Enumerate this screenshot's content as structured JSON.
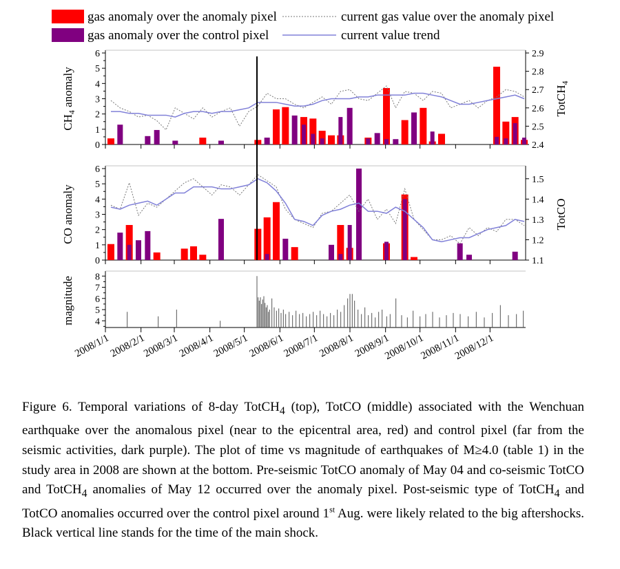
{
  "legend": {
    "items": [
      {
        "label": "gas anomaly over the anomaly pixel",
        "kind": "bar",
        "color": "#ff0000"
      },
      {
        "label": "gas anomaly over the control pixel",
        "kind": "bar",
        "color": "#800080"
      },
      {
        "label": "current gas value over the anomaly pixel",
        "kind": "dotted",
        "color": "#777777"
      },
      {
        "label": "current value trend",
        "kind": "line",
        "color": "#8080d8"
      }
    ]
  },
  "colors": {
    "anomaly": "#ff0000",
    "control": "#800080",
    "current": "#777777",
    "trend": "#8080d8",
    "mainshock": "#000000"
  },
  "x_ticks": [
    "2008/1/1",
    "2008/2/1",
    "2008/3/1",
    "2008/4/1",
    "2008/5/1",
    "2008/6/1",
    "2008/7/1",
    "2008/8/1",
    "2008/9/1",
    "2008/10/1",
    "2008/11/1",
    "2008/12/1"
  ],
  "main_shock": "2008-05-12",
  "chart_data": [
    {
      "type": "bar",
      "panel": "ch4",
      "ylabel": "CH4 anomaly",
      "y2label": "TotCH4",
      "ylim": [
        0,
        6
      ],
      "y_ticks": [
        0,
        1,
        2,
        3,
        4,
        5,
        6
      ],
      "y2lim": [
        2.4,
        2.9
      ],
      "y2_ticks": [
        2.4,
        2.5,
        2.6,
        2.7,
        2.8,
        2.9
      ],
      "x": [
        "2008-01-01",
        "2008-01-09",
        "2008-01-17",
        "2008-01-25",
        "2008-02-02",
        "2008-02-10",
        "2008-02-18",
        "2008-02-26",
        "2008-03-05",
        "2008-03-13",
        "2008-03-21",
        "2008-03-29",
        "2008-04-06",
        "2008-04-14",
        "2008-04-22",
        "2008-04-30",
        "2008-05-08",
        "2008-05-16",
        "2008-05-24",
        "2008-06-01",
        "2008-06-09",
        "2008-06-17",
        "2008-06-25",
        "2008-07-03",
        "2008-07-11",
        "2008-07-19",
        "2008-07-27",
        "2008-08-04",
        "2008-08-12",
        "2008-08-20",
        "2008-08-28",
        "2008-09-05",
        "2008-09-13",
        "2008-09-21",
        "2008-09-29",
        "2008-10-07",
        "2008-10-15",
        "2008-10-23",
        "2008-10-31",
        "2008-11-08",
        "2008-11-16",
        "2008-11-24",
        "2008-12-02",
        "2008-12-10",
        "2008-12-18",
        "2008-12-26"
      ],
      "series": [
        {
          "name": "gas anomaly over the anomaly pixel",
          "values": [
            0.4,
            0,
            0,
            0,
            0,
            0,
            0,
            0,
            0,
            0,
            0.45,
            0,
            0,
            0,
            0,
            0,
            0.3,
            0,
            2.3,
            2.45,
            0,
            1.8,
            1.7,
            0.9,
            0.6,
            0.6,
            0,
            0,
            0.45,
            0,
            3.7,
            0,
            1.6,
            0,
            2.4,
            0.2,
            0.7,
            0,
            0,
            0,
            0,
            0,
            5.1,
            1.5,
            1.8,
            0.3
          ]
        },
        {
          "name": "gas anomaly over the control pixel",
          "values": [
            0,
            1.3,
            0,
            0,
            0.55,
            0.95,
            0,
            0.25,
            0,
            0,
            0,
            0,
            0.25,
            0,
            0,
            0,
            0,
            0.45,
            0,
            0,
            1.9,
            1.3,
            0.7,
            0.4,
            0,
            1.8,
            2.4,
            0,
            0.4,
            0.75,
            0.35,
            0.35,
            0,
            2.1,
            0,
            0.85,
            0,
            0,
            0,
            0,
            0,
            0,
            0.5,
            0.4,
            1.4,
            0.45
          ]
        },
        {
          "name": "current gas value over the anomaly pixel",
          "values": [
            2.64,
            2.6,
            2.58,
            2.55,
            2.56,
            2.53,
            2.48,
            2.6,
            2.57,
            2.54,
            2.6,
            2.55,
            2.58,
            2.6,
            2.5,
            2.58,
            2.61,
            2.68,
            2.65,
            2.65,
            2.62,
            2.6,
            2.63,
            2.66,
            2.62,
            2.69,
            2.7,
            2.65,
            2.64,
            2.68,
            2.72,
            2.6,
            2.69,
            2.68,
            2.64,
            2.69,
            2.68,
            2.6,
            2.62,
            2.64,
            2.6,
            2.64,
            2.66,
            2.7,
            2.69,
            2.66
          ]
        },
        {
          "name": "current value trend",
          "values": [
            2.58,
            2.58,
            2.57,
            2.57,
            2.56,
            2.56,
            2.56,
            2.55,
            2.57,
            2.58,
            2.58,
            2.57,
            2.58,
            2.58,
            2.59,
            2.6,
            2.63,
            2.63,
            2.63,
            2.62,
            2.61,
            2.61,
            2.62,
            2.64,
            2.65,
            2.65,
            2.65,
            2.66,
            2.66,
            2.67,
            2.67,
            2.67,
            2.67,
            2.68,
            2.68,
            2.67,
            2.66,
            2.64,
            2.62,
            2.62,
            2.63,
            2.64,
            2.65,
            2.66,
            2.67,
            2.65
          ]
        }
      ]
    },
    {
      "type": "bar",
      "panel": "co",
      "ylabel": "CO anomaly",
      "y2label": "TotCO",
      "ylim": [
        0,
        6
      ],
      "y_ticks": [
        0,
        1,
        2,
        3,
        4,
        5,
        6
      ],
      "y2lim": [
        1.1,
        1.55
      ],
      "y2_ticks": [
        1.1,
        1.2,
        1.3,
        1.4,
        1.5
      ],
      "x": [
        "2008-01-01",
        "2008-01-09",
        "2008-01-17",
        "2008-01-25",
        "2008-02-02",
        "2008-02-10",
        "2008-02-18",
        "2008-02-26",
        "2008-03-05",
        "2008-03-13",
        "2008-03-21",
        "2008-03-29",
        "2008-04-06",
        "2008-04-14",
        "2008-04-22",
        "2008-04-30",
        "2008-05-08",
        "2008-05-16",
        "2008-05-24",
        "2008-06-01",
        "2008-06-09",
        "2008-06-17",
        "2008-06-25",
        "2008-07-03",
        "2008-07-11",
        "2008-07-19",
        "2008-07-27",
        "2008-08-04",
        "2008-08-12",
        "2008-08-20",
        "2008-08-28",
        "2008-09-05",
        "2008-09-13",
        "2008-09-21",
        "2008-09-29",
        "2008-10-07",
        "2008-10-15",
        "2008-10-23",
        "2008-10-31",
        "2008-11-08",
        "2008-11-16",
        "2008-11-24",
        "2008-12-02",
        "2008-12-10",
        "2008-12-18",
        "2008-12-26"
      ],
      "series": [
        {
          "name": "gas anomaly over the anomaly pixel",
          "values": [
            1.05,
            0,
            2.3,
            0,
            0,
            0.5,
            0,
            0,
            0.75,
            0.9,
            0.35,
            0,
            0,
            0,
            0,
            0,
            2.05,
            2.8,
            3.8,
            0,
            0.85,
            0,
            0,
            0,
            0,
            2.3,
            0.8,
            0,
            0,
            0,
            1.1,
            0,
            4.3,
            0.2,
            0,
            0,
            0,
            0,
            0,
            0,
            0,
            0,
            0,
            0,
            0,
            0
          ]
        },
        {
          "name": "gas anomaly over the control pixel",
          "values": [
            0,
            1.8,
            1.0,
            1.3,
            1.9,
            0,
            0,
            0,
            0,
            0,
            0,
            0,
            2.7,
            0,
            0,
            0,
            0,
            0.4,
            0,
            1.4,
            0,
            0,
            0,
            0,
            1.0,
            0.4,
            2.3,
            6.0,
            0,
            0,
            1.2,
            0,
            4.0,
            0,
            0,
            0,
            0,
            0,
            1.1,
            0.35,
            0,
            0,
            0,
            0,
            0.55,
            0
          ]
        },
        {
          "name": "current gas value over the anomaly pixel",
          "values": [
            1.37,
            1.35,
            1.48,
            1.32,
            1.38,
            1.36,
            1.4,
            1.44,
            1.48,
            1.5,
            1.46,
            1.42,
            1.47,
            1.46,
            1.42,
            1.47,
            1.52,
            1.49,
            1.46,
            1.35,
            1.3,
            1.28,
            1.26,
            1.33,
            1.34,
            1.38,
            1.42,
            1.34,
            1.4,
            1.3,
            1.35,
            1.28,
            1.45,
            1.3,
            1.25,
            1.2,
            1.2,
            1.22,
            1.18,
            1.26,
            1.22,
            1.26,
            1.24,
            1.3,
            1.3,
            1.27
          ]
        },
        {
          "name": "current value trend",
          "values": [
            1.36,
            1.35,
            1.37,
            1.38,
            1.39,
            1.37,
            1.4,
            1.43,
            1.43,
            1.46,
            1.46,
            1.46,
            1.45,
            1.45,
            1.46,
            1.47,
            1.5,
            1.48,
            1.44,
            1.38,
            1.3,
            1.29,
            1.27,
            1.32,
            1.34,
            1.35,
            1.37,
            1.38,
            1.34,
            1.34,
            1.33,
            1.36,
            1.34,
            1.3,
            1.26,
            1.2,
            1.19,
            1.2,
            1.21,
            1.21,
            1.23,
            1.25,
            1.26,
            1.27,
            1.3,
            1.29
          ]
        }
      ]
    },
    {
      "type": "bar",
      "panel": "magnitude",
      "ylabel": "magnitude",
      "ylim": [
        3.4,
        8.2
      ],
      "y_ticks": [
        4,
        5,
        6,
        7,
        8
      ],
      "x": [
        "2008-01-20",
        "2008-02-16",
        "2008-03-03",
        "2008-04-10",
        "2008-05-12",
        "2008-05-13",
        "2008-05-14",
        "2008-05-15",
        "2008-05-16",
        "2008-05-17",
        "2008-05-18",
        "2008-05-19",
        "2008-05-20",
        "2008-05-21",
        "2008-05-22",
        "2008-05-23",
        "2008-05-25",
        "2008-05-27",
        "2008-05-29",
        "2008-05-31",
        "2008-06-02",
        "2008-06-04",
        "2008-06-06",
        "2008-06-09",
        "2008-06-12",
        "2008-06-15",
        "2008-06-18",
        "2008-06-21",
        "2008-06-24",
        "2008-06-27",
        "2008-06-30",
        "2008-07-03",
        "2008-07-06",
        "2008-07-09",
        "2008-07-12",
        "2008-07-15",
        "2008-07-18",
        "2008-07-21",
        "2008-07-24",
        "2008-07-27",
        "2008-07-30",
        "2008-08-01",
        "2008-08-03",
        "2008-08-05",
        "2008-08-08",
        "2008-08-11",
        "2008-08-14",
        "2008-08-17",
        "2008-08-20",
        "2008-08-23",
        "2008-08-26",
        "2008-08-29",
        "2008-09-02",
        "2008-09-05",
        "2008-09-10",
        "2008-09-15",
        "2008-09-20",
        "2008-09-25",
        "2008-10-01",
        "2008-10-06",
        "2008-10-12",
        "2008-10-18",
        "2008-10-24",
        "2008-10-30",
        "2008-11-05",
        "2008-11-12",
        "2008-11-19",
        "2008-11-26",
        "2008-12-03",
        "2008-12-10",
        "2008-12-17",
        "2008-12-24",
        "2008-12-30"
      ],
      "values": [
        4.8,
        4.4,
        5.0,
        4.0,
        8.0,
        6.1,
        5.8,
        6.1,
        5.5,
        5.9,
        6.2,
        5.6,
        5.2,
        5.4,
        4.8,
        5.0,
        6.0,
        5.2,
        4.9,
        5.1,
        4.7,
        5.0,
        4.6,
        4.8,
        4.5,
        4.9,
        4.6,
        4.7,
        4.4,
        4.6,
        4.8,
        4.5,
        4.9,
        4.6,
        4.4,
        4.7,
        4.5,
        5.0,
        4.8,
        5.4,
        6.0,
        6.4,
        6.4,
        5.8,
        5.0,
        4.6,
        5.2,
        4.5,
        4.7,
        4.3,
        4.8,
        5.0,
        4.4,
        4.6,
        6.0,
        4.5,
        4.3,
        4.9,
        4.4,
        4.6,
        4.8,
        4.3,
        4.5,
        4.7,
        4.6,
        4.4,
        4.8,
        4.3,
        4.7,
        5.4,
        4.5,
        4.6,
        4.9
      ]
    }
  ],
  "caption": {
    "p1": "Figure 6. Temporal variations of 8-day TotCH",
    "p1_sub": "4",
    "p2": " (top), TotCO (middle) associated with the Wenchuan earthquake over the anomalous pixel (near to the epicentral area, red) and control pixel (far from the seismic activities, dark purple). The plot of time vs magnitude of earthquakes of M≥4.0 (table 1) in the study area in 2008 are shown at the bottom. Pre-seismic TotCO anomaly of May 04 and co-seismic TotCO and TotCH",
    "p2_sub": "4",
    "p3": " anomalies of May 12 occurred over the anomaly pixel. Post-seismic type of TotCH",
    "p3_sub": "4",
    "p4": " and TotCO anomalies occurred over the control pixel around 1",
    "p4_sup": "st",
    "p5": " Aug. were likely related to the big aftershocks. Black vertical line stands for the time of the main shock."
  }
}
